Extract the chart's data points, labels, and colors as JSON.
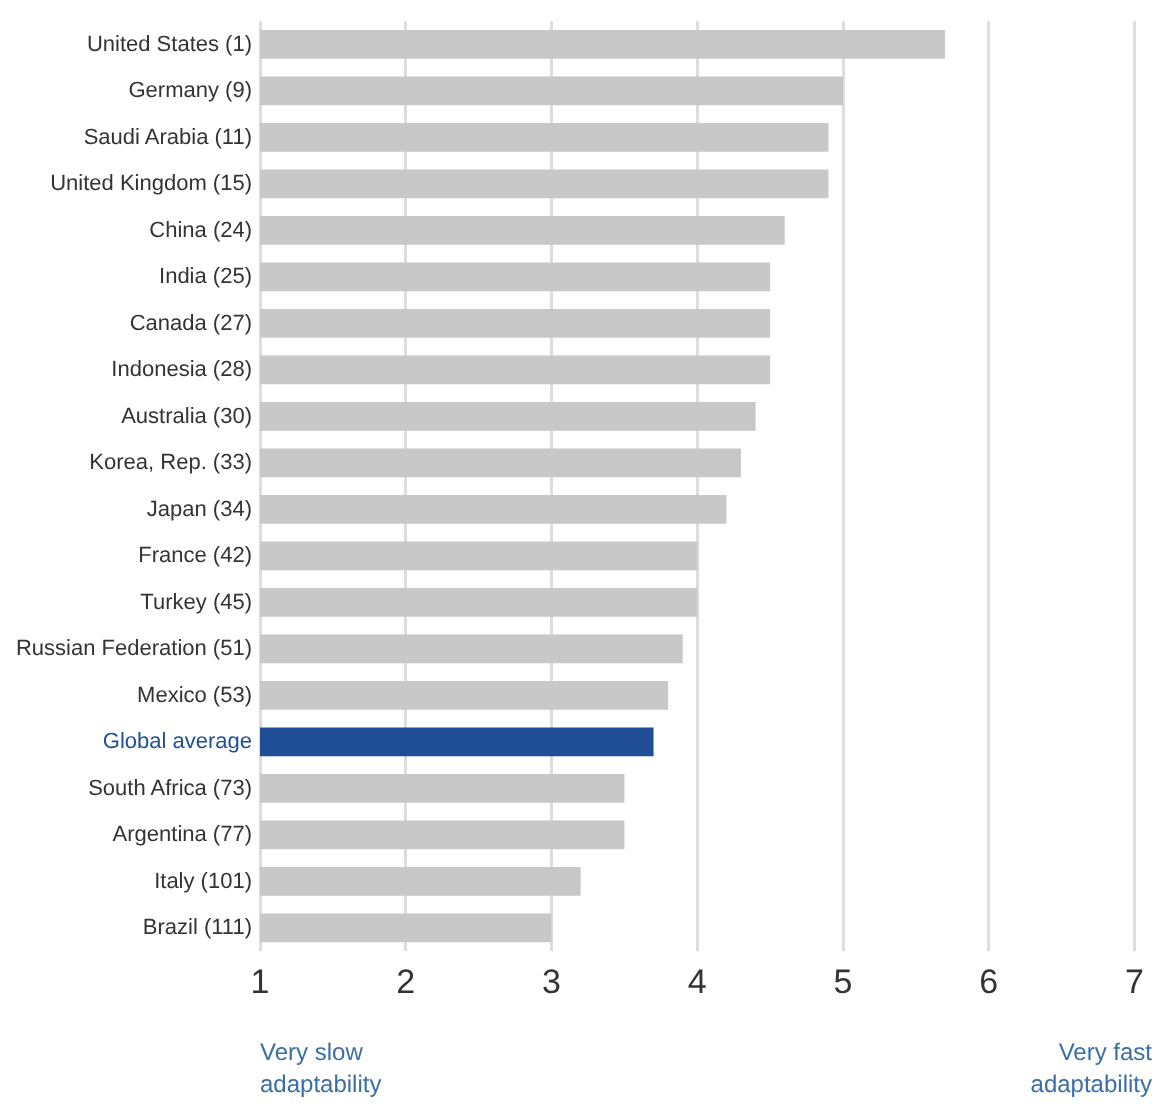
{
  "chart_data": {
    "type": "bar",
    "orientation": "horizontal",
    "categories": [
      "United States (1)",
      "Germany (9)",
      "Saudi Arabia (11)",
      "United Kingdom (15)",
      "China (24)",
      "India (25)",
      "Canada (27)",
      "Indonesia (28)",
      "Australia (30)",
      "Korea, Rep. (33)",
      "Japan (34)",
      "France (42)",
      "Turkey (45)",
      "Russian Federation (51)",
      "Mexico (53)",
      "Global average",
      "South Africa (73)",
      "Argentina (77)",
      "Italy (101)",
      "Brazil (111)"
    ],
    "values": [
      5.7,
      5.0,
      4.9,
      4.9,
      4.6,
      4.5,
      4.5,
      4.5,
      4.4,
      4.3,
      4.2,
      4.0,
      4.0,
      3.9,
      3.8,
      3.7,
      3.5,
      3.5,
      3.2,
      3.0
    ],
    "colors": [
      "#c8c8c8",
      "#c8c8c8",
      "#c8c8c8",
      "#c8c8c8",
      "#c8c8c8",
      "#c8c8c8",
      "#c8c8c8",
      "#c8c8c8",
      "#c8c8c8",
      "#c8c8c8",
      "#c8c8c8",
      "#c8c8c8",
      "#c8c8c8",
      "#c8c8c8",
      "#c8c8c8",
      "#1f4e96",
      "#c8c8c8",
      "#c8c8c8",
      "#c8c8c8",
      "#c8c8c8"
    ],
    "xlim": [
      1,
      7
    ],
    "xticks": [
      1,
      2,
      3,
      4,
      5,
      6,
      7
    ],
    "grid": "x",
    "legend": false,
    "annotations": [
      "Very slow adaptability",
      "Very fast adaptability"
    ]
  }
}
